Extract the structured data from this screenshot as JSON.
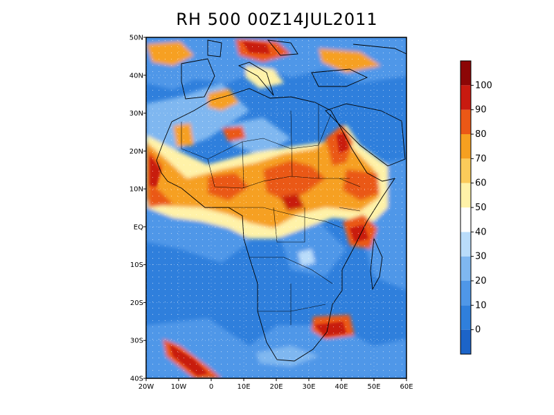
{
  "title": "RH 500 00Z14JUL2011",
  "map": {
    "lat_labels": [
      "50N",
      "40N",
      "30N",
      "20N",
      "10N",
      "EQ",
      "10S",
      "20S",
      "30S",
      "40S"
    ],
    "lon_labels": [
      "20W",
      "10W",
      "0",
      "10E",
      "20E",
      "30E",
      "40E",
      "50E",
      "60E"
    ],
    "lat_values": [
      50,
      40,
      30,
      20,
      10,
      0,
      -10,
      -20,
      -30,
      -40
    ],
    "lon_values": [
      -20,
      -10,
      0,
      10,
      20,
      30,
      40,
      50,
      60
    ],
    "extent": {
      "lon_min": -20,
      "lon_max": 60,
      "lat_min": -40,
      "lat_max": 50
    }
  },
  "colorbar": {
    "labels": [
      "0",
      "10",
      "20",
      "30",
      "40",
      "50",
      "60",
      "70",
      "80",
      "90",
      "100"
    ],
    "colors": [
      "#1c64c8",
      "#2f7fdc",
      "#4f97e8",
      "#7fb7f0",
      "#b9dcfa",
      "#ffffff",
      "#fff2a8",
      "#fbcb5a",
      "#f6a020",
      "#ea5816",
      "#c81a10",
      "#8c0606"
    ]
  }
}
